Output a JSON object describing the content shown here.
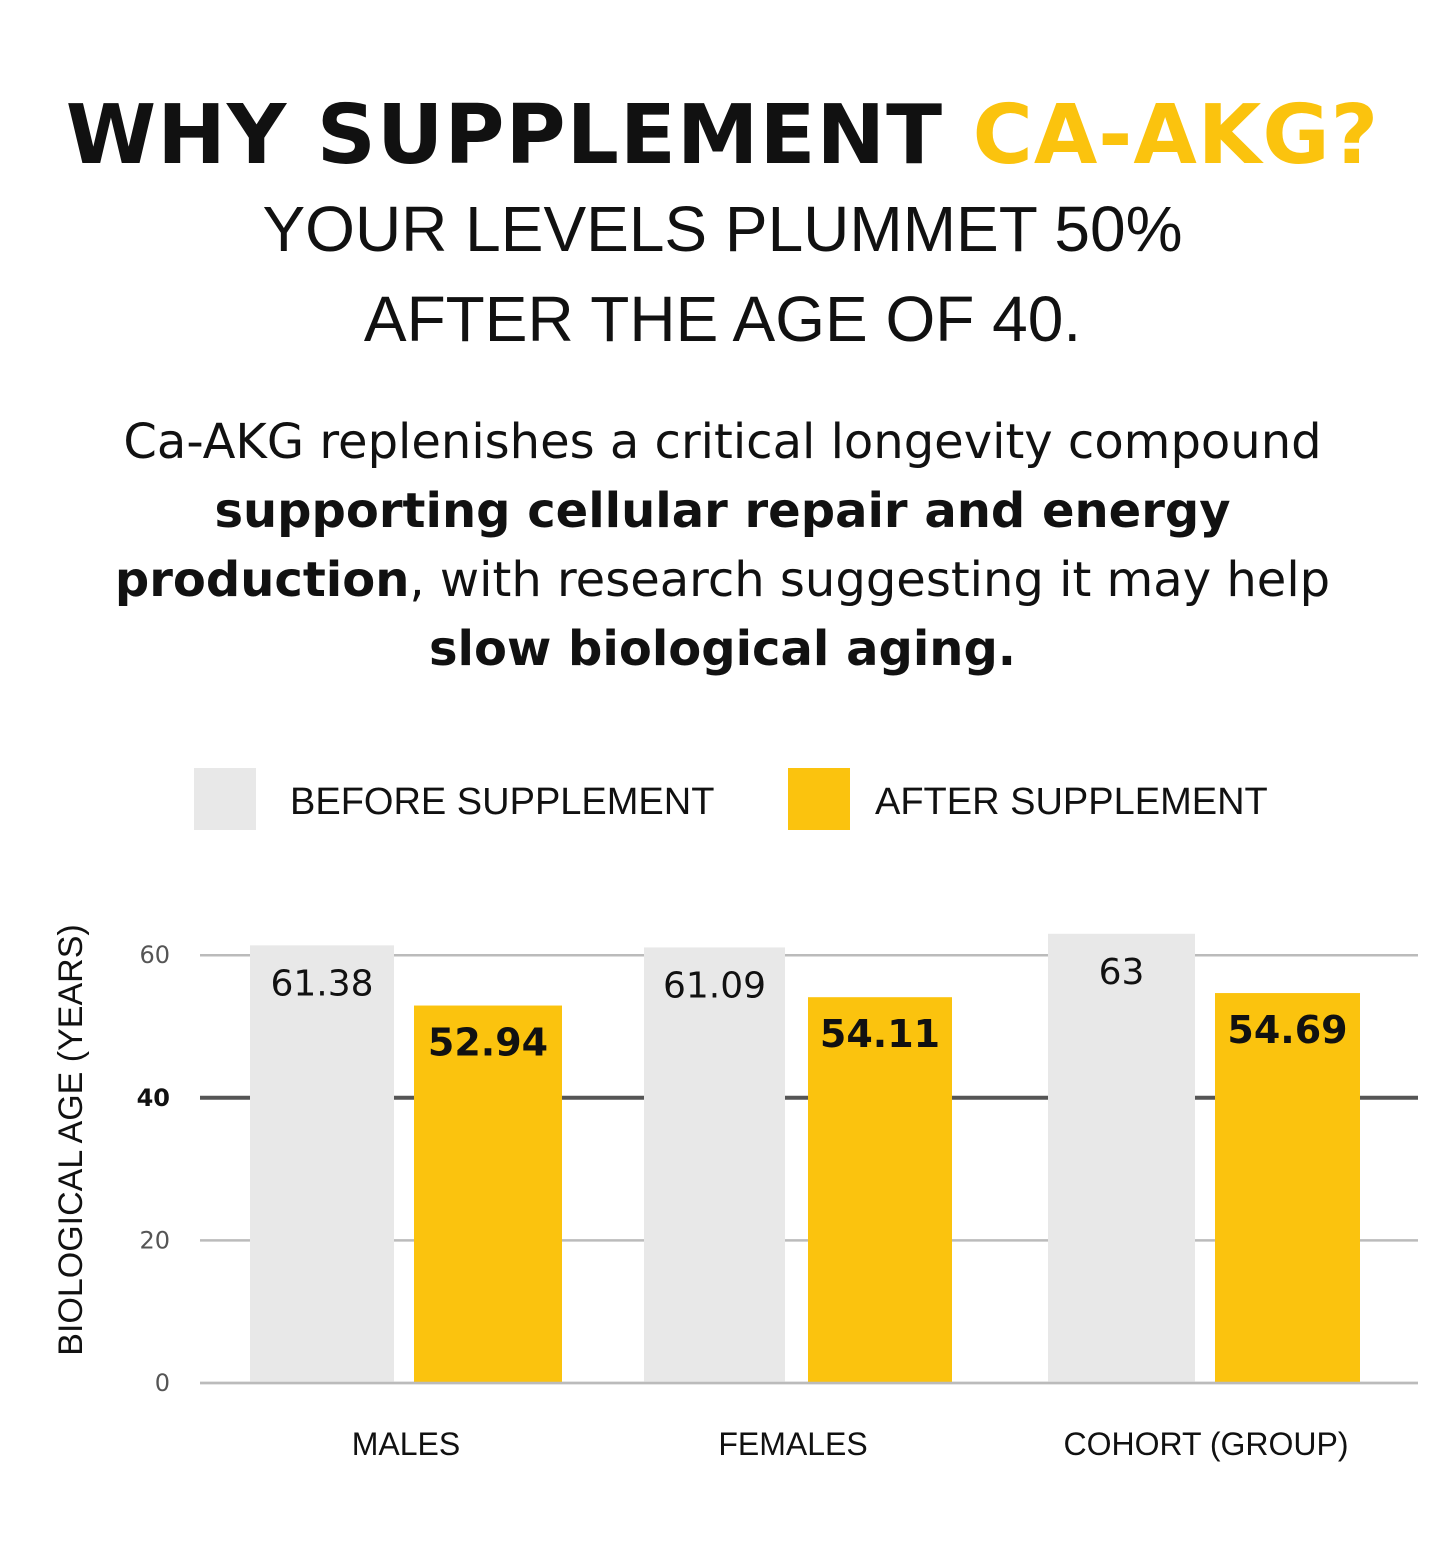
{
  "header": {
    "title_black": "WHY SUPPLEMENT",
    "title_highlight": "CA-AKG?",
    "subtitle_line1": "YOUR LEVELS PLUMMET 50%",
    "subtitle_line2": "AFTER THE AGE OF 40."
  },
  "paragraph": {
    "p1": "Ca-AKG replenishes a critical longevity compound ",
    "p2_bold": "supporting cellular repair and energy production",
    "p3": ", with research suggesting it may help ",
    "p4_bold": "slow biological aging."
  },
  "colors": {
    "before": "#E8E8E8",
    "after": "#FBC30E",
    "highlight": "#FBC30E"
  },
  "chart_data": {
    "type": "bar",
    "title": "",
    "xlabel": "",
    "ylabel": "BIOLOGICAL AGE (YEARS)",
    "ylim": [
      0,
      65
    ],
    "yticks": [
      0,
      20,
      40,
      60
    ],
    "emphasized_tick": 40,
    "grid": true,
    "legend_position": "top",
    "categories": [
      "MALES",
      "FEMALES",
      "COHORT (GROUP)"
    ],
    "series": [
      {
        "name": "BEFORE SUPPLEMENT",
        "values": [
          61.38,
          61.09,
          63
        ],
        "labels": [
          "61.38",
          "61.09",
          "63"
        ]
      },
      {
        "name": "AFTER SUPPLEMENT",
        "values": [
          52.94,
          54.11,
          54.69
        ],
        "labels": [
          "52.94",
          "54.11",
          "54.69"
        ]
      }
    ]
  }
}
